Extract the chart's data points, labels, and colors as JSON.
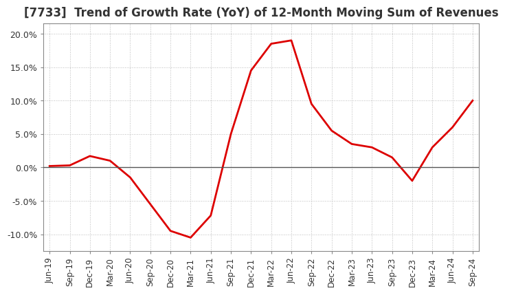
{
  "title": "[7733]  Trend of Growth Rate (YoY) of 12-Month Moving Sum of Revenues",
  "title_fontsize": 12,
  "line_color": "#dd0000",
  "background_color": "#ffffff",
  "grid_color": "#aaaaaa",
  "zero_line_color": "#555555",
  "border_color": "#888888",
  "ylim": [
    -0.125,
    0.215
  ],
  "yticks": [
    -0.1,
    -0.05,
    0.0,
    0.05,
    0.1,
    0.15,
    0.2
  ],
  "ytick_labels": [
    "-10.0%",
    "-5.0%",
    "0.0%",
    "5.0%",
    "10.0%",
    "15.0%",
    "20.0%"
  ],
  "x_labels": [
    "Jun-19",
    "Sep-19",
    "Dec-19",
    "Mar-20",
    "Jun-20",
    "Sep-20",
    "Dec-20",
    "Mar-21",
    "Jun-21",
    "Sep-21",
    "Dec-21",
    "Mar-22",
    "Jun-22",
    "Sep-22",
    "Dec-22",
    "Mar-23",
    "Jun-23",
    "Sep-23",
    "Dec-23",
    "Mar-24",
    "Jun-24",
    "Sep-24"
  ],
  "values": [
    0.002,
    0.003,
    0.017,
    0.01,
    -0.015,
    -0.055,
    -0.095,
    -0.105,
    -0.072,
    0.05,
    0.145,
    0.185,
    0.19,
    0.095,
    0.055,
    0.035,
    0.03,
    0.015,
    -0.02,
    0.03,
    0.06,
    0.1
  ]
}
